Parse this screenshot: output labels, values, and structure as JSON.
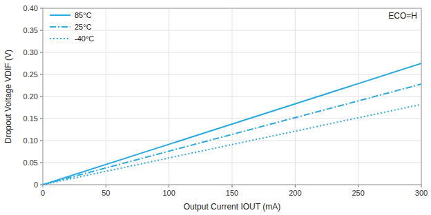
{
  "chart_data": {
    "type": "line",
    "x_label": "Output Current IOUT (mA)",
    "y_label": "Dropout Voltage VDIF (V)",
    "annotation": "ECO=H",
    "x": [
      0,
      300
    ],
    "series": [
      {
        "name": "85°C",
        "color": "#29ABE2",
        "line_style": "solid",
        "values": [
          0,
          0.275
        ]
      },
      {
        "name": "25°C",
        "color": "#29ABE2",
        "line_style": "dashdot",
        "values": [
          0,
          0.228
        ]
      },
      {
        "name": "-40°C",
        "color": "#29ABE2",
        "line_style": "dotted",
        "values": [
          0,
          0.182
        ]
      }
    ],
    "xlim": [
      0,
      300
    ],
    "ylim": [
      0,
      0.4
    ],
    "xticks": [
      0,
      50,
      100,
      150,
      200,
      250,
      300
    ],
    "yticks": [
      0,
      0.05,
      {
        "value": 0.1,
        "label": "0.10"
      },
      0.15,
      {
        "value": 0.2,
        "label": "0.20"
      },
      0.25,
      {
        "value": 0.3,
        "label": "0.30"
      },
      0.35,
      {
        "value": 0.4,
        "label": "0.40"
      }
    ],
    "grid": true,
    "legend": "upper left"
  }
}
